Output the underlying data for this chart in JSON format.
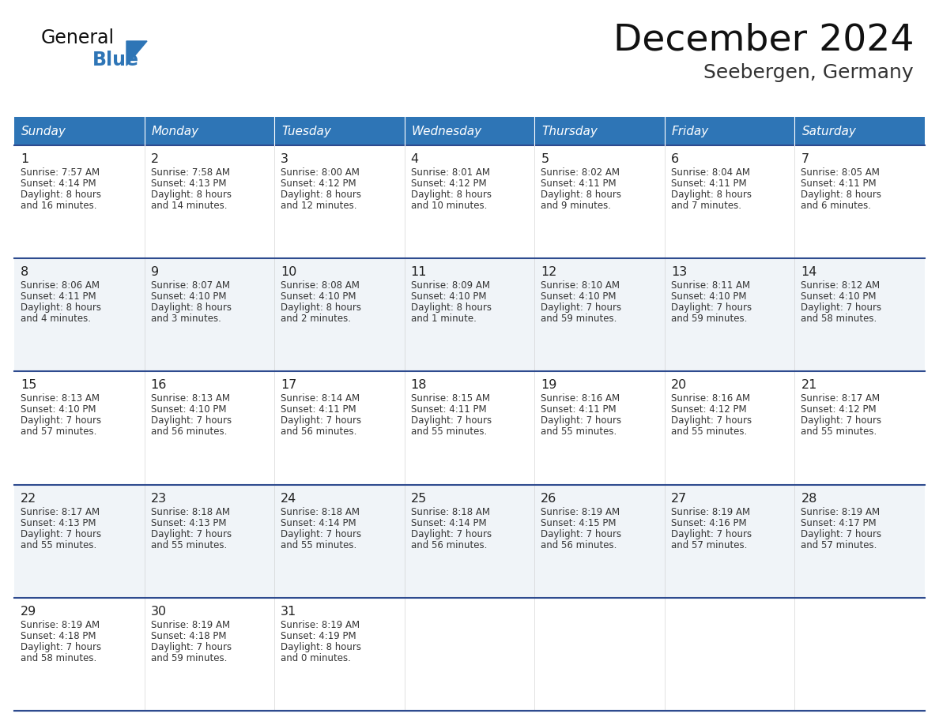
{
  "title": "December 2024",
  "subtitle": "Seebergen, Germany",
  "header_bg": "#2E75B6",
  "header_text": "#FFFFFF",
  "day_names": [
    "Sunday",
    "Monday",
    "Tuesday",
    "Wednesday",
    "Thursday",
    "Friday",
    "Saturday"
  ],
  "row_bg_even": "#FFFFFF",
  "row_bg_odd": "#F0F4F8",
  "cell_border_color": "#2E4B8F",
  "date_color": "#222222",
  "info_color": "#333333",
  "logo_general_color": "#111111",
  "logo_blue_color": "#2E75B6",
  "weeks": [
    {
      "days": [
        {
          "date": "1",
          "sunrise": "7:57 AM",
          "sunset": "4:14 PM",
          "daylight_line1": "Daylight: 8 hours",
          "daylight_line2": "and 16 minutes."
        },
        {
          "date": "2",
          "sunrise": "7:58 AM",
          "sunset": "4:13 PM",
          "daylight_line1": "Daylight: 8 hours",
          "daylight_line2": "and 14 minutes."
        },
        {
          "date": "3",
          "sunrise": "8:00 AM",
          "sunset": "4:12 PM",
          "daylight_line1": "Daylight: 8 hours",
          "daylight_line2": "and 12 minutes."
        },
        {
          "date": "4",
          "sunrise": "8:01 AM",
          "sunset": "4:12 PM",
          "daylight_line1": "Daylight: 8 hours",
          "daylight_line2": "and 10 minutes."
        },
        {
          "date": "5",
          "sunrise": "8:02 AM",
          "sunset": "4:11 PM",
          "daylight_line1": "Daylight: 8 hours",
          "daylight_line2": "and 9 minutes."
        },
        {
          "date": "6",
          "sunrise": "8:04 AM",
          "sunset": "4:11 PM",
          "daylight_line1": "Daylight: 8 hours",
          "daylight_line2": "and 7 minutes."
        },
        {
          "date": "7",
          "sunrise": "8:05 AM",
          "sunset": "4:11 PM",
          "daylight_line1": "Daylight: 8 hours",
          "daylight_line2": "and 6 minutes."
        }
      ]
    },
    {
      "days": [
        {
          "date": "8",
          "sunrise": "8:06 AM",
          "sunset": "4:11 PM",
          "daylight_line1": "Daylight: 8 hours",
          "daylight_line2": "and 4 minutes."
        },
        {
          "date": "9",
          "sunrise": "8:07 AM",
          "sunset": "4:10 PM",
          "daylight_line1": "Daylight: 8 hours",
          "daylight_line2": "and 3 minutes."
        },
        {
          "date": "10",
          "sunrise": "8:08 AM",
          "sunset": "4:10 PM",
          "daylight_line1": "Daylight: 8 hours",
          "daylight_line2": "and 2 minutes."
        },
        {
          "date": "11",
          "sunrise": "8:09 AM",
          "sunset": "4:10 PM",
          "daylight_line1": "Daylight: 8 hours",
          "daylight_line2": "and 1 minute."
        },
        {
          "date": "12",
          "sunrise": "8:10 AM",
          "sunset": "4:10 PM",
          "daylight_line1": "Daylight: 7 hours",
          "daylight_line2": "and 59 minutes."
        },
        {
          "date": "13",
          "sunrise": "8:11 AM",
          "sunset": "4:10 PM",
          "daylight_line1": "Daylight: 7 hours",
          "daylight_line2": "and 59 minutes."
        },
        {
          "date": "14",
          "sunrise": "8:12 AM",
          "sunset": "4:10 PM",
          "daylight_line1": "Daylight: 7 hours",
          "daylight_line2": "and 58 minutes."
        }
      ]
    },
    {
      "days": [
        {
          "date": "15",
          "sunrise": "8:13 AM",
          "sunset": "4:10 PM",
          "daylight_line1": "Daylight: 7 hours",
          "daylight_line2": "and 57 minutes."
        },
        {
          "date": "16",
          "sunrise": "8:13 AM",
          "sunset": "4:10 PM",
          "daylight_line1": "Daylight: 7 hours",
          "daylight_line2": "and 56 minutes."
        },
        {
          "date": "17",
          "sunrise": "8:14 AM",
          "sunset": "4:11 PM",
          "daylight_line1": "Daylight: 7 hours",
          "daylight_line2": "and 56 minutes."
        },
        {
          "date": "18",
          "sunrise": "8:15 AM",
          "sunset": "4:11 PM",
          "daylight_line1": "Daylight: 7 hours",
          "daylight_line2": "and 55 minutes."
        },
        {
          "date": "19",
          "sunrise": "8:16 AM",
          "sunset": "4:11 PM",
          "daylight_line1": "Daylight: 7 hours",
          "daylight_line2": "and 55 minutes."
        },
        {
          "date": "20",
          "sunrise": "8:16 AM",
          "sunset": "4:12 PM",
          "daylight_line1": "Daylight: 7 hours",
          "daylight_line2": "and 55 minutes."
        },
        {
          "date": "21",
          "sunrise": "8:17 AM",
          "sunset": "4:12 PM",
          "daylight_line1": "Daylight: 7 hours",
          "daylight_line2": "and 55 minutes."
        }
      ]
    },
    {
      "days": [
        {
          "date": "22",
          "sunrise": "8:17 AM",
          "sunset": "4:13 PM",
          "daylight_line1": "Daylight: 7 hours",
          "daylight_line2": "and 55 minutes."
        },
        {
          "date": "23",
          "sunrise": "8:18 AM",
          "sunset": "4:13 PM",
          "daylight_line1": "Daylight: 7 hours",
          "daylight_line2": "and 55 minutes."
        },
        {
          "date": "24",
          "sunrise": "8:18 AM",
          "sunset": "4:14 PM",
          "daylight_line1": "Daylight: 7 hours",
          "daylight_line2": "and 55 minutes."
        },
        {
          "date": "25",
          "sunrise": "8:18 AM",
          "sunset": "4:14 PM",
          "daylight_line1": "Daylight: 7 hours",
          "daylight_line2": "and 56 minutes."
        },
        {
          "date": "26",
          "sunrise": "8:19 AM",
          "sunset": "4:15 PM",
          "daylight_line1": "Daylight: 7 hours",
          "daylight_line2": "and 56 minutes."
        },
        {
          "date": "27",
          "sunrise": "8:19 AM",
          "sunset": "4:16 PM",
          "daylight_line1": "Daylight: 7 hours",
          "daylight_line2": "and 57 minutes."
        },
        {
          "date": "28",
          "sunrise": "8:19 AM",
          "sunset": "4:17 PM",
          "daylight_line1": "Daylight: 7 hours",
          "daylight_line2": "and 57 minutes."
        }
      ]
    },
    {
      "days": [
        {
          "date": "29",
          "sunrise": "8:19 AM",
          "sunset": "4:18 PM",
          "daylight_line1": "Daylight: 7 hours",
          "daylight_line2": "and 58 minutes."
        },
        {
          "date": "30",
          "sunrise": "8:19 AM",
          "sunset": "4:18 PM",
          "daylight_line1": "Daylight: 7 hours",
          "daylight_line2": "and 59 minutes."
        },
        {
          "date": "31",
          "sunrise": "8:19 AM",
          "sunset": "4:19 PM",
          "daylight_line1": "Daylight: 8 hours",
          "daylight_line2": "and 0 minutes."
        },
        null,
        null,
        null,
        null
      ]
    }
  ]
}
